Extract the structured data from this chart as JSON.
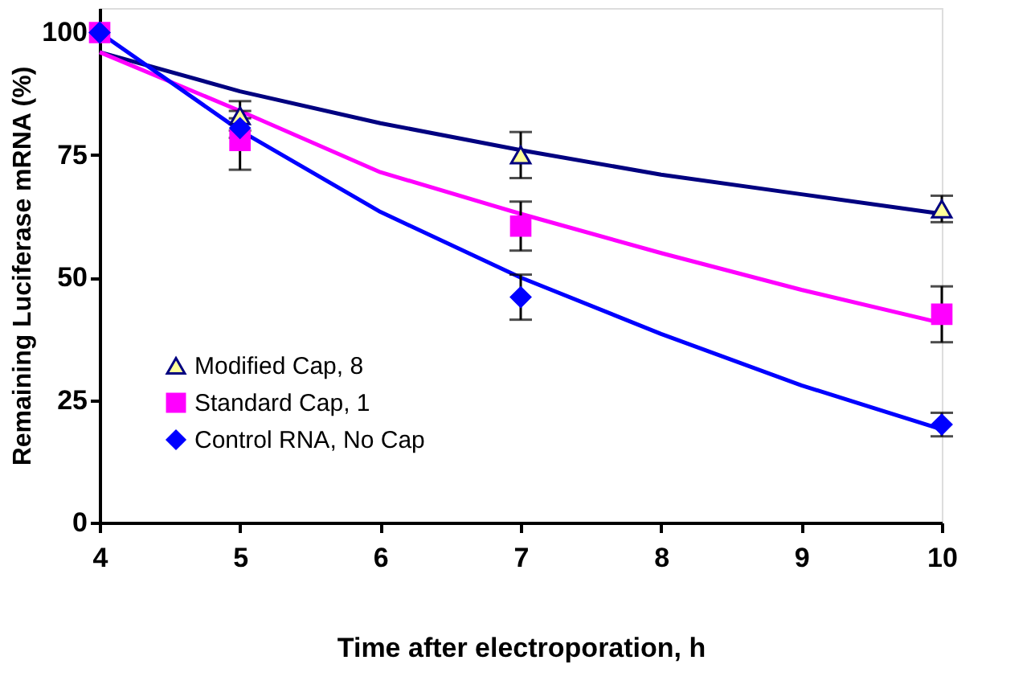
{
  "chart_data": {
    "type": "scatter",
    "xlabel": "Time after electroporation, h",
    "ylabel": "Remaining Luciferase mRNA (%)",
    "xlim": [
      4,
      10
    ],
    "ylim": [
      0,
      105
    ],
    "xticks": [
      4,
      5,
      6,
      7,
      8,
      9,
      10
    ],
    "yticks": [
      0,
      25,
      50,
      75,
      100
    ],
    "grid": false,
    "legend": "bottom left",
    "series": [
      {
        "name": "Modified Cap, 8",
        "marker": "triangle",
        "color": "#000080",
        "x": [
          5,
          7,
          10
        ],
        "values": [
          83,
          75,
          64
        ],
        "errors": [
          3,
          4.7,
          2.7
        ]
      },
      {
        "name": "Standard Cap, 1",
        "marker": "square",
        "color": "#ff00ff",
        "x": [
          4,
          5,
          7,
          10
        ],
        "values": [
          100,
          78,
          60.5,
          42.5
        ],
        "errors": [
          null,
          6,
          5,
          5.7
        ]
      },
      {
        "name": "Control RNA, No Cap",
        "marker": "diamond",
        "color": "#0000ff",
        "x": [
          4,
          5,
          7,
          10
        ],
        "values": [
          100,
          80.5,
          46,
          20
        ],
        "errors": [
          null,
          2,
          4.6,
          2.4
        ]
      },
      {
        "type": "line",
        "color": "#000080",
        "x": [
          4,
          5,
          6,
          7,
          8,
          9,
          10
        ],
        "values": [
          96,
          88,
          81.5,
          76,
          71,
          67,
          63
        ]
      },
      {
        "type": "line",
        "color": "#ff00ff",
        "x": [
          4,
          5,
          6,
          7,
          8,
          9,
          10
        ],
        "values": [
          96,
          84,
          71.5,
          63,
          55,
          47.5,
          40.7
        ]
      },
      {
        "type": "line",
        "color": "#0000ff",
        "x": [
          4,
          5,
          6,
          7,
          8,
          9,
          10
        ],
        "values": [
          100,
          80,
          63.4,
          50,
          38.5,
          28,
          19
        ]
      }
    ]
  }
}
